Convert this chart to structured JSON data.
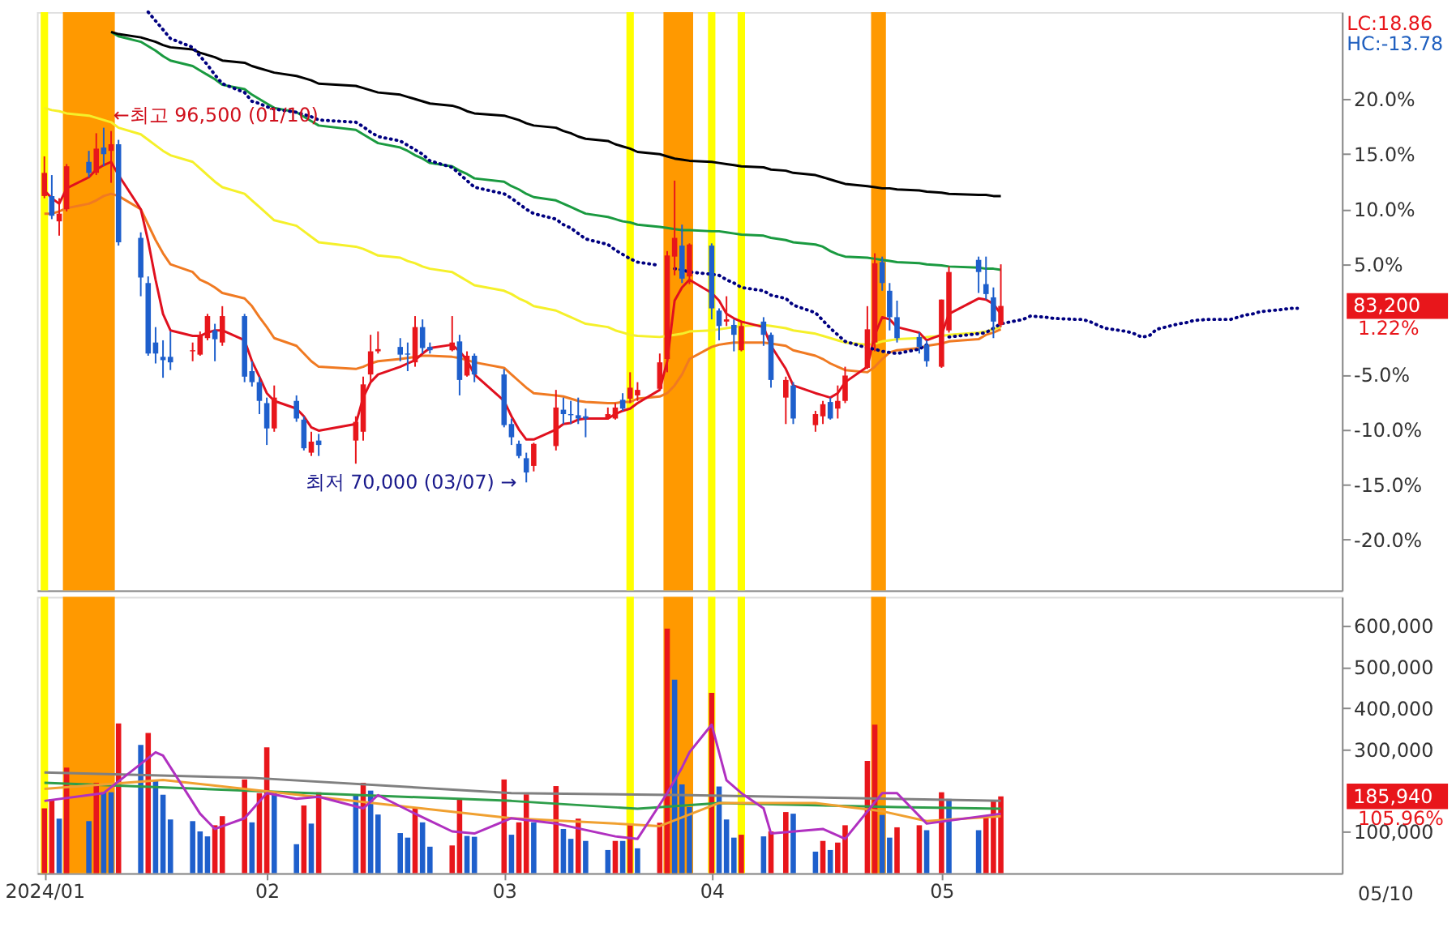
{
  "chart_data": [
    {
      "type": "candlestick",
      "x": [
        "2024-01-02",
        "2024-01-03",
        "2024-01-04",
        "2024-01-05",
        "2024-01-08",
        "2024-01-09",
        "2024-01-10",
        "2024-01-11",
        "2024-01-12",
        "2024-01-15",
        "2024-01-16",
        "2024-01-17",
        "2024-01-18",
        "2024-01-19",
        "2024-01-22",
        "2024-01-23",
        "2024-01-24",
        "2024-01-25",
        "2024-01-26",
        "2024-01-29",
        "2024-01-30",
        "2024-01-31",
        "2024-02-01",
        "2024-02-02",
        "2024-02-05",
        "2024-02-06",
        "2024-02-07",
        "2024-02-08",
        "2024-02-13",
        "2024-02-14",
        "2024-02-15",
        "2024-02-16",
        "2024-02-19",
        "2024-02-20",
        "2024-02-21",
        "2024-02-22",
        "2024-02-23",
        "2024-02-26",
        "2024-02-27",
        "2024-02-28",
        "2024-02-29",
        "2024-03-04",
        "2024-03-05",
        "2024-03-06",
        "2024-03-07",
        "2024-03-08",
        "2024-03-11",
        "2024-03-12",
        "2024-03-13",
        "2024-03-14",
        "2024-03-15",
        "2024-03-18",
        "2024-03-19",
        "2024-03-20",
        "2024-03-21",
        "2024-03-22",
        "2024-03-25",
        "2024-03-26",
        "2024-03-27",
        "2024-03-28",
        "2024-03-29",
        "2024-04-01",
        "2024-04-02",
        "2024-04-03",
        "2024-04-04",
        "2024-04-05",
        "2024-04-08",
        "2024-04-09",
        "2024-04-11",
        "2024-04-12",
        "2024-04-15",
        "2024-04-16",
        "2024-04-17",
        "2024-04-18",
        "2024-04-19",
        "2024-04-22",
        "2024-04-23",
        "2024-04-24",
        "2024-04-25",
        "2024-04-26",
        "2024-04-29",
        "2024-04-30",
        "2024-05-02",
        "2024-05-03",
        "2024-05-07",
        "2024-05-08",
        "2024-05-09",
        "2024-05-10"
      ],
      "ohlc": [
        [
          11.2,
          14.8,
          11.0,
          13.3
        ],
        [
          11.2,
          13.1,
          9.1,
          9.4
        ],
        [
          8.9,
          11.0,
          7.6,
          9.6
        ],
        [
          10.0,
          14.1,
          9.8,
          13.9
        ],
        [
          14.3,
          15.3,
          12.9,
          13.3
        ],
        [
          13.3,
          16.9,
          13.1,
          15.5
        ],
        [
          15.6,
          17.4,
          13.9,
          15.0
        ],
        [
          15.3,
          17.1,
          12.4,
          15.9
        ],
        [
          15.9,
          16.3,
          6.7,
          7.0
        ],
        [
          7.4,
          7.9,
          2.1,
          3.8
        ],
        [
          3.3,
          3.9,
          -3.3,
          -3.1
        ],
        [
          -2.1,
          -0.7,
          -4.0,
          -3.1
        ],
        [
          -3.4,
          -1.9,
          -5.3,
          -3.7
        ],
        [
          -3.4,
          -1.1,
          -4.6,
          -3.9
        ],
        [
          -2.9,
          -2.1,
          -3.8,
          -2.8
        ],
        [
          -3.2,
          -1.1,
          -3.3,
          -1.4
        ],
        [
          -1.7,
          0.5,
          -1.9,
          0.3
        ],
        [
          -1.0,
          -0.4,
          -3.8,
          -1.8
        ],
        [
          -2.1,
          1.2,
          -2.4,
          0.3
        ],
        [
          0.3,
          0.5,
          -5.7,
          -5.2
        ],
        [
          -4.7,
          -3.8,
          -6.1,
          -5.7
        ],
        [
          -5.7,
          -5.2,
          -8.6,
          -7.4
        ],
        [
          -7.6,
          -7.1,
          -11.4,
          -9.9
        ],
        [
          -9.9,
          -6.0,
          -10.2,
          -7.1
        ],
        [
          -7.4,
          -6.9,
          -9.3,
          -9.0
        ],
        [
          -9.1,
          -8.8,
          -11.9,
          -11.7
        ],
        [
          -12.1,
          -10.2,
          -12.4,
          -11.1
        ],
        [
          -11.0,
          -10.4,
          -12.4,
          -11.4
        ],
        [
          -11.0,
          -8.8,
          -13.1,
          -9.3
        ],
        [
          -10.2,
          -5.2,
          -11.0,
          -5.9
        ],
        [
          -5.0,
          -1.4,
          -5.7,
          -2.9
        ],
        [
          -2.9,
          -1.1,
          -3.1,
          -2.7
        ],
        [
          -2.5,
          -1.7,
          -3.8,
          -3.2
        ],
        [
          -3.1,
          -2.1,
          -4.7,
          -3.2
        ],
        [
          -3.9,
          0.3,
          -4.3,
          -0.7
        ],
        [
          -0.7,
          0.0,
          -3.1,
          -2.6
        ],
        [
          -2.5,
          -2.1,
          -3.1,
          -2.8
        ],
        [
          -2.8,
          0.3,
          -2.9,
          -2.1
        ],
        [
          -2.0,
          -1.4,
          -6.9,
          -5.5
        ],
        [
          -5.1,
          -2.9,
          -5.2,
          -3.3
        ],
        [
          -3.3,
          -3.1,
          -5.7,
          -5.0
        ],
        [
          -5.0,
          -4.5,
          -9.8,
          -9.6
        ],
        [
          -9.5,
          -9.0,
          -11.4,
          -10.7
        ],
        [
          -11.3,
          -11.0,
          -12.6,
          -12.4
        ],
        [
          -12.6,
          -12.1,
          -14.8,
          -13.9
        ],
        [
          -13.3,
          -11.2,
          -13.8,
          -11.3
        ],
        [
          -11.5,
          -6.4,
          -11.9,
          -8.0
        ],
        [
          -8.2,
          -7.1,
          -9.5,
          -8.6
        ],
        [
          -8.6,
          -7.4,
          -9.5,
          -8.7
        ],
        [
          -8.7,
          -7.1,
          -9.5,
          -9.0
        ],
        [
          -8.8,
          -8.1,
          -10.7,
          -9.0
        ],
        [
          -9.0,
          -8.0,
          -9.1,
          -8.6
        ],
        [
          -9.0,
          -7.6,
          -9.1,
          -8.0
        ],
        [
          -7.3,
          -6.7,
          -8.3,
          -8.1
        ],
        [
          -7.2,
          -4.8,
          -7.6,
          -6.2
        ],
        [
          -6.9,
          -5.7,
          -7.4,
          -6.4
        ],
        [
          -6.3,
          -3.1,
          -6.4,
          -3.9
        ],
        [
          -3.6,
          6.2,
          -4.8,
          5.8
        ],
        [
          5.7,
          12.6,
          4.0,
          7.4
        ],
        [
          6.7,
          8.6,
          3.3,
          3.7
        ],
        [
          3.9,
          6.9,
          3.2,
          6.8
        ],
        [
          6.7,
          6.9,
          0.0,
          1.0
        ],
        [
          0.8,
          1.0,
          -1.9,
          -0.6
        ],
        [
          -0.2,
          2.1,
          -0.6,
          0.0
        ],
        [
          -0.5,
          0.0,
          -2.9,
          -1.4
        ],
        [
          -2.8,
          -0.2,
          -2.9,
          -0.6
        ],
        [
          -0.2,
          0.2,
          -2.4,
          -1.4
        ],
        [
          -1.4,
          -1.2,
          -6.2,
          -5.5
        ],
        [
          -7.1,
          -5.2,
          -9.5,
          -5.5
        ],
        [
          -6.0,
          -5.7,
          -9.5,
          -9.0
        ],
        [
          -9.6,
          -8.3,
          -10.2,
          -8.6
        ],
        [
          -8.8,
          -7.4,
          -9.5,
          -7.7
        ],
        [
          -7.5,
          -7.1,
          -9.1,
          -9.0
        ],
        [
          -8.1,
          -6.0,
          -9.0,
          -7.4
        ],
        [
          -7.4,
          -4.3,
          -7.6,
          -5.1
        ],
        [
          -4.4,
          1.2,
          -4.5,
          -0.9
        ],
        [
          -2.1,
          6.0,
          -2.9,
          5.1
        ],
        [
          5.2,
          5.7,
          2.6,
          3.3
        ],
        [
          2.6,
          3.3,
          -1.0,
          0.2
        ],
        [
          0.2,
          1.7,
          -2.1,
          -1.7
        ],
        [
          -1.6,
          -1.2,
          -3.1,
          -2.5
        ],
        [
          -2.3,
          -1.9,
          -4.3,
          -3.8
        ],
        [
          -4.3,
          1.8,
          -4.4,
          1.8
        ],
        [
          -1.0,
          4.8,
          -1.2,
          4.3
        ],
        [
          5.4,
          5.7,
          2.4,
          4.3
        ],
        [
          3.2,
          5.7,
          1.8,
          2.3
        ],
        [
          2.0,
          2.9,
          -1.7,
          -0.2
        ],
        [
          -0.5,
          5.0,
          -0.7,
          1.22
        ]
      ],
      "colors": [
        "#e8161b",
        "#1e5fcc",
        "#e8161b",
        "#e8161b",
        "#1e5fcc",
        "#e8161b",
        "#1e5fcc",
        "#e8161b",
        "#1e5fcc",
        "#1e5fcc",
        "#1e5fcc",
        "#1e5fcc",
        "#1e5fcc",
        "#1e5fcc",
        "#e8161b",
        "#e8161b",
        "#e8161b",
        "#1e5fcc",
        "#e8161b",
        "#1e5fcc",
        "#1e5fcc",
        "#1e5fcc",
        "#1e5fcc",
        "#e8161b",
        "#1e5fcc",
        "#1e5fcc",
        "#e8161b",
        "#1e5fcc",
        "#e8161b",
        "#e8161b",
        "#e8161b",
        "#e8161b",
        "#1e5fcc",
        "#1e5fcc",
        "#e8161b",
        "#1e5fcc",
        "#1e5fcc",
        "#e8161b",
        "#1e5fcc",
        "#e8161b",
        "#1e5fcc",
        "#1e5fcc",
        "#1e5fcc",
        "#1e5fcc",
        "#1e5fcc",
        "#e8161b",
        "#e8161b",
        "#1e5fcc",
        "#1e5fcc",
        "#1e5fcc",
        "#1e5fcc",
        "#e8161b",
        "#e8161b",
        "#1e5fcc",
        "#e8161b",
        "#e8161b",
        "#e8161b",
        "#e8161b",
        "#e8161b",
        "#1e5fcc",
        "#e8161b",
        "#1e5fcc",
        "#1e5fcc",
        "#e8161b",
        "#1e5fcc",
        "#e8161b",
        "#1e5fcc",
        "#1e5fcc",
        "#e8161b",
        "#1e5fcc",
        "#e8161b",
        "#e8161b",
        "#1e5fcc",
        "#e8161b",
        "#e8161b",
        "#e8161b",
        "#e8161b",
        "#1e5fcc",
        "#1e5fcc",
        "#1e5fcc",
        "#1e5fcc",
        "#1e5fcc",
        "#e8161b",
        "#e8161b",
        "#1e5fcc",
        "#1e5fcc",
        "#1e5fcc",
        "#e8161b"
      ],
      "series": [
        {
          "type": "line",
          "color": "#f5f02a",
          "values": [
            19.2,
            19.0,
            18.9,
            18.7,
            18.5,
            18.3,
            18.1,
            17.9,
            17.4,
            16.8,
            16.3,
            15.8,
            15.3,
            14.9,
            14.3,
            13.7,
            13.1,
            12.5,
            12.0,
            11.4,
            10.8,
            10.2,
            9.6,
            9.0,
            8.5,
            8.0,
            7.5,
            7.0,
            6.6,
            6.4,
            6.1,
            5.8,
            5.6,
            5.3,
            5.1,
            4.8,
            4.6,
            4.3,
            3.9,
            3.5,
            3.1,
            2.6,
            2.3,
            1.9,
            1.6,
            1.2,
            0.8,
            0.5,
            0.2,
            -0.1,
            -0.4,
            -0.7,
            -1.0,
            -1.2,
            -1.4,
            -1.5,
            -1.6,
            -1.5,
            -1.4,
            -1.3,
            -1.1,
            -1.0,
            -0.9,
            -0.8,
            -0.7,
            -0.6,
            -0.5,
            -0.6,
            -0.8,
            -1.0,
            -1.3,
            -1.5,
            -1.7,
            -1.9,
            -2.1,
            -2.3,
            -2.2,
            -2.0,
            -1.9,
            -1.8,
            -1.7,
            -1.6,
            -1.5,
            -1.4,
            -1.2,
            -1.1,
            -0.9,
            -0.7
          ]
        },
        {
          "type": "line",
          "color": "#1a9a40",
          "values": [
            null,
            null,
            null,
            null,
            null,
            null,
            null,
            26.1,
            25.7,
            25.2,
            24.8,
            24.4,
            23.9,
            23.5,
            23.0,
            22.6,
            22.2,
            21.8,
            21.3,
            20.9,
            20.4,
            20.0,
            19.6,
            19.2,
            18.8,
            18.4,
            18.0,
            17.6,
            17.2,
            16.8,
            16.4,
            16.0,
            15.6,
            15.3,
            14.9,
            14.6,
            14.2,
            13.9,
            13.5,
            13.2,
            12.8,
            12.5,
            12.1,
            11.8,
            11.4,
            11.1,
            10.8,
            10.5,
            10.2,
            9.9,
            9.6,
            9.3,
            9.1,
            8.9,
            8.8,
            8.6,
            8.4,
            8.3,
            8.2,
            8.1,
            8.1,
            8.0,
            8.0,
            7.9,
            7.8,
            7.7,
            7.6,
            7.4,
            7.2,
            7.0,
            6.8,
            6.6,
            6.2,
            5.9,
            5.7,
            5.6,
            5.5,
            5.4,
            5.3,
            5.2,
            5.1,
            5.0,
            4.9,
            4.8,
            4.7,
            4.6,
            4.6,
            4.5
          ]
        },
        {
          "type": "line",
          "color": "#000000",
          "values": [
            null,
            null,
            null,
            null,
            null,
            null,
            null,
            26.1,
            25.9,
            25.6,
            25.4,
            25.2,
            24.9,
            24.7,
            24.5,
            24.2,
            24.0,
            23.8,
            23.5,
            23.3,
            23.0,
            22.8,
            22.6,
            22.4,
            22.1,
            21.9,
            21.7,
            21.4,
            21.2,
            21.0,
            20.8,
            20.6,
            20.4,
            20.2,
            20.0,
            19.8,
            19.6,
            19.4,
            19.2,
            18.9,
            18.7,
            18.5,
            18.3,
            18.1,
            17.8,
            17.6,
            17.4,
            17.1,
            16.9,
            16.6,
            16.4,
            16.2,
            15.9,
            15.7,
            15.5,
            15.2,
            15.0,
            14.8,
            14.6,
            14.5,
            14.4,
            14.3,
            14.2,
            14.1,
            14.0,
            13.9,
            13.8,
            13.6,
            13.5,
            13.3,
            13.1,
            12.9,
            12.7,
            12.5,
            12.3,
            12.1,
            12.0,
            11.9,
            11.9,
            11.8,
            11.7,
            11.6,
            11.5,
            11.4,
            11.3,
            11.3,
            11.2,
            11.2
          ]
        },
        {
          "type": "line",
          "color": "#f07a22",
          "values": [
            9.6,
            9.6,
            9.8,
            10.1,
            10.5,
            10.8,
            11.2,
            11.4,
            11.2,
            10.0,
            8.6,
            7.2,
            6.0,
            5.0,
            4.3,
            3.6,
            3.3,
            2.9,
            2.4,
            1.9,
            1.2,
            0.2,
            -0.7,
            -1.7,
            -2.4,
            -3.1,
            -3.8,
            -4.3,
            -4.5,
            -4.3,
            -4.0,
            -3.8,
            -3.6,
            -3.5,
            -3.4,
            -3.3,
            -3.3,
            -3.4,
            -3.5,
            -3.7,
            -3.9,
            -4.4,
            -5.0,
            -5.6,
            -6.2,
            -6.7,
            -6.9,
            -7.0,
            -7.2,
            -7.4,
            -7.5,
            -7.6,
            -7.6,
            -7.5,
            -7.5,
            -7.2,
            -7.0,
            -6.7,
            -6.0,
            -5.0,
            -3.6,
            -2.5,
            -2.3,
            -2.2,
            -2.1,
            -2.1,
            -2.1,
            -2.2,
            -2.4,
            -2.8,
            -3.3,
            -3.6,
            -4.0,
            -4.3,
            -4.6,
            -4.8,
            -4.3,
            -3.6,
            -3.0,
            -2.8,
            -2.6,
            -2.4,
            -2.2,
            -2.0,
            -1.8,
            -1.4,
            -1.2,
            -0.9
          ]
        },
        {
          "type": "line",
          "color": "#e0101e",
          "values": [
            11.7,
            11.0,
            10.5,
            11.9,
            12.9,
            13.6,
            14.0,
            14.3,
            13.1,
            10.0,
            7.1,
            3.6,
            0.5,
            -1.0,
            -1.5,
            -1.5,
            -1.2,
            -1.0,
            -1.0,
            -1.9,
            -3.8,
            -5.2,
            -6.7,
            -7.4,
            -8.1,
            -8.8,
            -9.8,
            -10.1,
            -9.5,
            -7.1,
            -5.7,
            -5.0,
            -4.3,
            -4.0,
            -3.7,
            -3.1,
            -2.6,
            -2.3,
            -2.9,
            -3.7,
            -5.0,
            -7.4,
            -8.8,
            -10.0,
            -10.9,
            -10.9,
            -10.0,
            -9.5,
            -9.4,
            -9.1,
            -9.0,
            -9.0,
            -8.6,
            -8.3,
            -8.1,
            -7.6,
            -6.4,
            -3.8,
            1.7,
            2.9,
            3.6,
            2.4,
            1.7,
            0.5,
            0.1,
            -0.2,
            -0.7,
            -2.4,
            -4.5,
            -6.0,
            -6.7,
            -6.9,
            -7.1,
            -6.7,
            -5.7,
            -4.3,
            -1.4,
            0.2,
            0.0,
            -0.7,
            -1.2,
            -1.9,
            -1.4,
            0.5,
            1.9,
            1.8,
            1.4,
            0.5
          ]
        },
        {
          "type": "line",
          "color": "#000080",
          "line_style": "dotted",
          "x": [
            "2024-01-16",
            "2024-01-17",
            "2024-01-18",
            "2024-01-19",
            "2024-01-22",
            "2024-01-23",
            "2024-01-24",
            "2024-01-25",
            "2024-01-26",
            "2024-01-29",
            "2024-01-30",
            "2024-01-31",
            "2024-02-01",
            "2024-02-02",
            "2024-02-05",
            "2024-02-06",
            "2024-02-07",
            "2024-02-08",
            "2024-02-13",
            "2024-02-14",
            "2024-02-15",
            "2024-02-16",
            "2024-02-19",
            "2024-02-20",
            "2024-02-21",
            "2024-02-22",
            "2024-02-23",
            "2024-02-26",
            "2024-02-27",
            "2024-02-28",
            "2024-02-29",
            "2024-03-04",
            "2024-03-05",
            "2024-03-06",
            "2024-03-07",
            "2024-03-08",
            "2024-03-11",
            "2024-03-12",
            "2024-03-13",
            "2024-03-14",
            "2024-03-15",
            "2024-03-18",
            "2024-03-19",
            "2024-03-20",
            "2024-03-21",
            "2024-03-22",
            "2024-03-25",
            "2024-03-26",
            "2024-03-27",
            "2024-03-28",
            "2024-03-29",
            "2024-04-01",
            "2024-04-02",
            "2024-04-03",
            "2024-04-04",
            "2024-04-05",
            "2024-04-08",
            "2024-04-09",
            "2024-04-11",
            "2024-04-12",
            "2024-04-15",
            "2024-04-16",
            "2024-04-17",
            "2024-04-18",
            "2024-04-19",
            "2024-04-22",
            "2024-04-23",
            "2024-04-24",
            "2024-04-25",
            "2024-04-26",
            "2024-04-29",
            "2024-04-30",
            "2024-05-02",
            "2024-05-03",
            "2024-05-07",
            "2024-05-08",
            "2024-05-09",
            "2024-05-10",
            "2024-05-13",
            "2024-05-14",
            "2024-05-16",
            "2024-05-17",
            "2024-05-20",
            "2024-05-21",
            "2024-05-22",
            "2024-05-23",
            "2024-05-24",
            "2024-05-27",
            "2024-05-28",
            "2024-05-29",
            "2024-05-30",
            "2024-05-31",
            "2024-06-03",
            "2024-06-04",
            "2024-06-05",
            "2024-06-07",
            "2024-06-10",
            "2024-06-11",
            "2024-06-12",
            "2024-06-13",
            "2024-06-14",
            "2024-06-17",
            "2024-06-18",
            "2024-06-19"
          ],
          "values": [
            27.9,
            27.1,
            26.3,
            25.5,
            24.7,
            23.9,
            23.1,
            22.2,
            21.4,
            20.6,
            19.8,
            19.6,
            19.3,
            19.1,
            18.8,
            18.6,
            18.4,
            18.1,
            17.9,
            17.5,
            17.0,
            16.6,
            16.2,
            15.8,
            15.4,
            15.0,
            14.4,
            13.8,
            13.2,
            12.6,
            12.0,
            11.4,
            11.0,
            10.5,
            10.0,
            9.6,
            9.1,
            8.6,
            8.3,
            7.8,
            7.3,
            6.8,
            6.3,
            5.9,
            5.5,
            5.2,
            4.9,
            null,
            4.6,
            4.5,
            4.3,
            4.1,
            4.0,
            3.6,
            3.3,
            2.9,
            2.6,
            2.2,
            1.9,
            1.3,
            0.6,
            -0.1,
            -0.8,
            -1.4,
            -2.0,
            -2.6,
            -2.7,
            -2.9,
            -3.0,
            -3.1,
            -2.7,
            -2.3,
            null,
            -1.6,
            -1.3,
            -1.2,
            -0.8,
            -0.4,
            0.0,
            0.3,
            0.2,
            0.1,
            0.0,
            0.0,
            -0.2,
            -0.5,
            -0.8,
            -1.1,
            -1.3,
            -1.6,
            -1.5,
            -0.9,
            -0.4,
            -0.3,
            -0.1,
            0.0,
            0.0,
            0.2,
            0.4,
            0.5,
            0.7,
            0.9,
            1.0,
            1.0
          ]
        }
      ],
      "tick_labels": "y",
      "xlim": [
        "2024-01-01",
        "2024-06-25"
      ],
      "ylim": [
        -24.6,
        27.9
      ],
      "yticks": [
        {
          "value": -20,
          "label": "-20.0%"
        },
        {
          "value": -15,
          "label": "-15.0%"
        },
        {
          "value": -10,
          "label": "-10.0%"
        },
        {
          "value": -5,
          "label": "-5.0%"
        },
        {
          "value": 5,
          "label": "5.0%"
        },
        {
          "value": 10,
          "label": "10.0%"
        },
        {
          "value": 15,
          "label": "15.0%"
        },
        {
          "value": 20,
          "label": "20.0%"
        }
      ],
      "bands": [
        {
          "axis": "x",
          "from": "2024-01-02",
          "to": "2024-01-02",
          "color": "#ffff00"
        },
        {
          "axis": "x",
          "from": "2024-01-05",
          "to": "2024-01-11",
          "color": "#ff9900"
        },
        {
          "axis": "x",
          "from": "2024-03-21",
          "to": "2024-03-21",
          "color": "#ffff00"
        },
        {
          "axis": "x",
          "from": "2024-03-26",
          "to": "2024-03-29",
          "color": "#ff9900"
        },
        {
          "axis": "x",
          "from": "2024-04-01",
          "to": "2024-04-01",
          "color": "#ffff00"
        },
        {
          "axis": "x",
          "from": "2024-04-05",
          "to": "2024-04-05",
          "color": "#ffff00"
        },
        {
          "axis": "x",
          "from": "2024-04-23",
          "to": "2024-04-24",
          "color": "#ff9900"
        }
      ],
      "annotations": [
        {
          "text": "←최고 96,500 (01/10)",
          "x": "2024-01-10",
          "y": 17.4
        },
        {
          "text": "최저 70,000 (03/07) →",
          "x": "2024-03-07",
          "y": -14.8
        },
        "83,200",
        "1.22%",
        "LC:18.86",
        "HC:-13.78"
      ]
    },
    {
      "type": "bar",
      "x": [
        "2024-01-02",
        "2024-01-03",
        "2024-01-04",
        "2024-01-05",
        "2024-01-08",
        "2024-01-09",
        "2024-01-10",
        "2024-01-11",
        "2024-01-12",
        "2024-01-15",
        "2024-01-16",
        "2024-01-17",
        "2024-01-18",
        "2024-01-19",
        "2024-01-22",
        "2024-01-23",
        "2024-01-24",
        "2024-01-25",
        "2024-01-26",
        "2024-01-29",
        "2024-01-30",
        "2024-01-31",
        "2024-02-01",
        "2024-02-02",
        "2024-02-05",
        "2024-02-06",
        "2024-02-07",
        "2024-02-08",
        "2024-02-13",
        "2024-02-14",
        "2024-02-15",
        "2024-02-16",
        "2024-02-19",
        "2024-02-20",
        "2024-02-21",
        "2024-02-22",
        "2024-02-23",
        "2024-02-26",
        "2024-02-27",
        "2024-02-28",
        "2024-02-29",
        "2024-03-04",
        "2024-03-05",
        "2024-03-06",
        "2024-03-07",
        "2024-03-08",
        "2024-03-11",
        "2024-03-12",
        "2024-03-13",
        "2024-03-14",
        "2024-03-15",
        "2024-03-18",
        "2024-03-19",
        "2024-03-20",
        "2024-03-21",
        "2024-03-22",
        "2024-03-25",
        "2024-03-26",
        "2024-03-27",
        "2024-03-28",
        "2024-03-29",
        "2024-04-01",
        "2024-04-02",
        "2024-04-03",
        "2024-04-04",
        "2024-04-05",
        "2024-04-08",
        "2024-04-09",
        "2024-04-11",
        "2024-04-12",
        "2024-04-15",
        "2024-04-16",
        "2024-04-17",
        "2024-04-18",
        "2024-04-19",
        "2024-04-22",
        "2024-04-23",
        "2024-04-24",
        "2024-04-25",
        "2024-04-26",
        "2024-04-29",
        "2024-04-30",
        "2024-05-02",
        "2024-05-03",
        "2024-05-07",
        "2024-05-08",
        "2024-05-09",
        "2024-05-10"
      ],
      "series": [
        {
          "type": "bar",
          "values": [
            157000,
            179000,
            132000,
            256000,
            126000,
            219000,
            196000,
            196000,
            363000,
            311000,
            340000,
            225000,
            190000,
            130000,
            126000,
            101000,
            89000,
            116000,
            138000,
            227000,
            123000,
            194000,
            305000,
            194000,
            70000,
            164000,
            120000,
            196000,
            188000,
            219000,
            200000,
            142000,
            97000,
            86000,
            159000,
            123000,
            64000,
            67000,
            179000,
            90000,
            88000,
            227000,
            93000,
            123000,
            191000,
            123000,
            211000,
            107000,
            83000,
            132000,
            78000,
            56000,
            78000,
            78000,
            120000,
            60000,
            122000,
            593000,
            469000,
            215000,
            160000,
            437000,
            210000,
            130000,
            86000,
            93000,
            89000,
            101000,
            148000,
            144000,
            52000,
            78000,
            56000,
            74000,
            116000,
            272000,
            360000,
            141000,
            86000,
            111000,
            116000,
            104000,
            196000,
            180000,
            104000,
            136000,
            175000,
            186000
          ],
          "colors": [
            "#e8161b",
            "#e8161b",
            "#1e5fcc",
            "#e8161b",
            "#1e5fcc",
            "#e8161b",
            "#1e5fcc",
            "#1e5fcc",
            "#e8161b",
            "#1e5fcc",
            "#e8161b",
            "#1e5fcc",
            "#1e5fcc",
            "#1e5fcc",
            "#1e5fcc",
            "#1e5fcc",
            "#1e5fcc",
            "#e8161b",
            "#e8161b",
            "#e8161b",
            "#1e5fcc",
            "#e8161b",
            "#e8161b",
            "#1e5fcc",
            "#1e5fcc",
            "#e8161b",
            "#1e5fcc",
            "#e8161b",
            "#1e5fcc",
            "#e8161b",
            "#1e5fcc",
            "#1e5fcc",
            "#1e5fcc",
            "#1e5fcc",
            "#e8161b",
            "#1e5fcc",
            "#1e5fcc",
            "#e8161b",
            "#e8161b",
            "#1e5fcc",
            "#1e5fcc",
            "#e8161b",
            "#1e5fcc",
            "#e8161b",
            "#e8161b",
            "#1e5fcc",
            "#e8161b",
            "#1e5fcc",
            "#1e5fcc",
            "#e8161b",
            "#1e5fcc",
            "#1e5fcc",
            "#e8161b",
            "#1e5fcc",
            "#e8161b",
            "#1e5fcc",
            "#e8161b",
            "#e8161b",
            "#1e5fcc",
            "#1e5fcc",
            "#1e5fcc",
            "#e8161b",
            "#1e5fcc",
            "#1e5fcc",
            "#1e5fcc",
            "#e8161b",
            "#1e5fcc",
            "#e8161b",
            "#e8161b",
            "#1e5fcc",
            "#1e5fcc",
            "#e8161b",
            "#1e5fcc",
            "#e8161b",
            "#e8161b",
            "#e8161b",
            "#e8161b",
            "#1e5fcc",
            "#1e5fcc",
            "#e8161b",
            "#e8161b",
            "#1e5fcc",
            "#e8161b",
            "#1e5fcc",
            "#1e5fcc",
            "#e8161b",
            "#e8161b",
            "#e8161b"
          ]
        },
        {
          "type": "line",
          "color": "#808080",
          "x": [
            "2024-01-02",
            "2024-01-30",
            "2024-03-05",
            "2024-03-29",
            "2024-05-10"
          ],
          "values": [
            244000,
            231000,
            194000,
            189000,
            175000
          ]
        },
        {
          "type": "line",
          "color": "#2e9e4a",
          "x": [
            "2024-01-02",
            "2024-03-05",
            "2024-03-22",
            "2024-04-02",
            "2024-04-26",
            "2024-05-10"
          ],
          "values": [
            219000,
            175000,
            156000,
            170000,
            160000,
            156000
          ]
        },
        {
          "type": "line",
          "color": "#f0a030",
          "x": [
            "2024-01-02",
            "2024-01-18",
            "2024-03-05",
            "2024-03-19",
            "2024-03-25",
            "2024-04-02",
            "2024-04-15",
            "2024-04-24",
            "2024-04-30",
            "2024-05-10"
          ],
          "values": [
            204000,
            226000,
            133000,
            120000,
            114000,
            170000,
            170000,
            150000,
            126000,
            138000
          ]
        },
        {
          "type": "line",
          "color": "#b030c0",
          "x": [
            "2024-01-02",
            "2024-01-10",
            "2024-01-17",
            "2024-01-18",
            "2024-01-23",
            "2024-01-25",
            "2024-01-29",
            "2024-02-01",
            "2024-02-05",
            "2024-02-08",
            "2024-02-14",
            "2024-02-16",
            "2024-02-21",
            "2024-02-26",
            "2024-02-29",
            "2024-03-05",
            "2024-03-11",
            "2024-03-19",
            "2024-03-22",
            "2024-03-26",
            "2024-03-28",
            "2024-03-29",
            "2024-04-01",
            "2024-04-03",
            "2024-04-05",
            "2024-04-08",
            "2024-04-09",
            "2024-04-16",
            "2024-04-19",
            "2024-04-24",
            "2024-04-26",
            "2024-04-30",
            "2024-05-10"
          ],
          "values": [
            175000,
            194000,
            293000,
            285000,
            144000,
            107000,
            133000,
            194000,
            180000,
            185000,
            157000,
            189000,
            144000,
            101000,
            96000,
            133000,
            120000,
            89000,
            83000,
            194000,
            256000,
            293000,
            360000,
            225000,
            194000,
            157000,
            96000,
            107000,
            83000,
            194000,
            194000,
            120000,
            144000
          ]
        }
      ],
      "xlim": [
        "2024-01-01",
        "2024-06-25"
      ],
      "ylim": [
        0,
        670000
      ],
      "yticks": [
        {
          "value": 100000,
          "label": "100,000"
        },
        {
          "value": 300000,
          "label": "300,000"
        },
        {
          "value": 400000,
          "label": "400,000"
        },
        {
          "value": 500000,
          "label": "500,000"
        },
        {
          "value": 600000,
          "label": "600,000"
        }
      ],
      "xticks": [
        {
          "value": "2024-01-02",
          "label": "2024/01"
        },
        {
          "value": "2024-02-01",
          "label": "02"
        },
        {
          "value": "2024-03-04",
          "label": "03"
        },
        {
          "value": "2024-04-01",
          "label": "04"
        },
        {
          "value": "2024-05-02",
          "label": "05"
        }
      ],
      "bands": [
        {
          "axis": "x",
          "from": "2024-01-02",
          "to": "2024-01-02",
          "color": "#ffff00"
        },
        {
          "axis": "x",
          "from": "2024-01-05",
          "to": "2024-01-11",
          "color": "#ff9900"
        },
        {
          "axis": "x",
          "from": "2024-03-21",
          "to": "2024-03-21",
          "color": "#ffff00"
        },
        {
          "axis": "x",
          "from": "2024-03-26",
          "to": "2024-03-29",
          "color": "#ff9900"
        },
        {
          "axis": "x",
          "from": "2024-04-01",
          "to": "2024-04-01",
          "color": "#ffff00"
        },
        {
          "axis": "x",
          "from": "2024-04-05",
          "to": "2024-04-05",
          "color": "#ffff00"
        },
        {
          "axis": "x",
          "from": "2024-04-23",
          "to": "2024-04-24",
          "color": "#ff9900"
        }
      ],
      "annotations": [
        "185,940",
        "105.96%",
        "05/10"
      ]
    }
  ]
}
